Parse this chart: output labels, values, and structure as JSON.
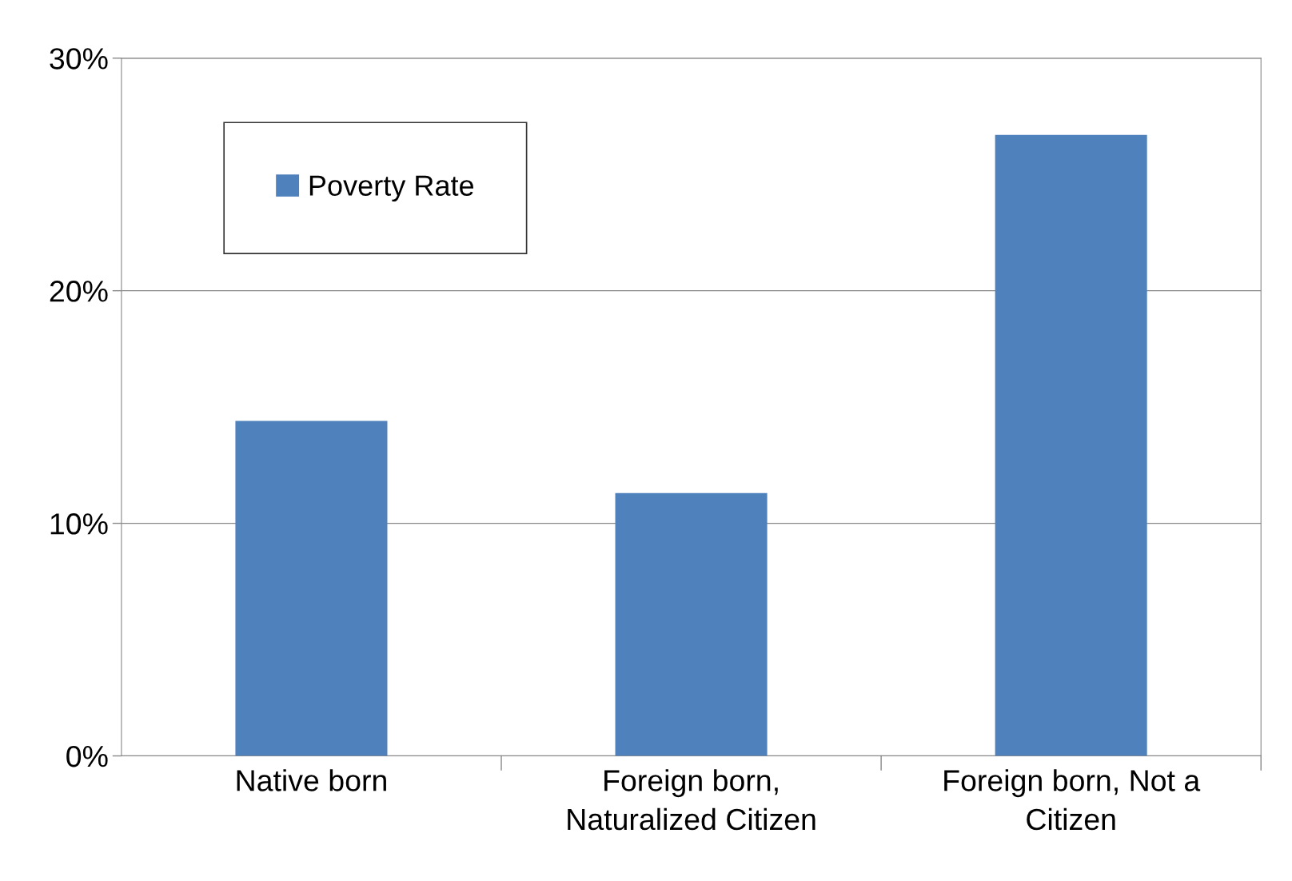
{
  "chart_data": {
    "type": "bar",
    "categories": [
      "Native born",
      "Foreign born,\nNaturalized Citizen",
      "Foreign born, Not a\nCitizen"
    ],
    "series": [
      {
        "name": "Poverty Rate",
        "color": "#4f81bd",
        "values": [
          14.4,
          11.3,
          26.7
        ]
      }
    ],
    "ylim": [
      0,
      30
    ],
    "yticks": [
      {
        "value": 0,
        "label": "0%"
      },
      {
        "value": 10,
        "label": "10%"
      },
      {
        "value": 20,
        "label": "20%"
      },
      {
        "value": 30,
        "label": "30%"
      }
    ],
    "grid": "y",
    "legend": "top left"
  }
}
